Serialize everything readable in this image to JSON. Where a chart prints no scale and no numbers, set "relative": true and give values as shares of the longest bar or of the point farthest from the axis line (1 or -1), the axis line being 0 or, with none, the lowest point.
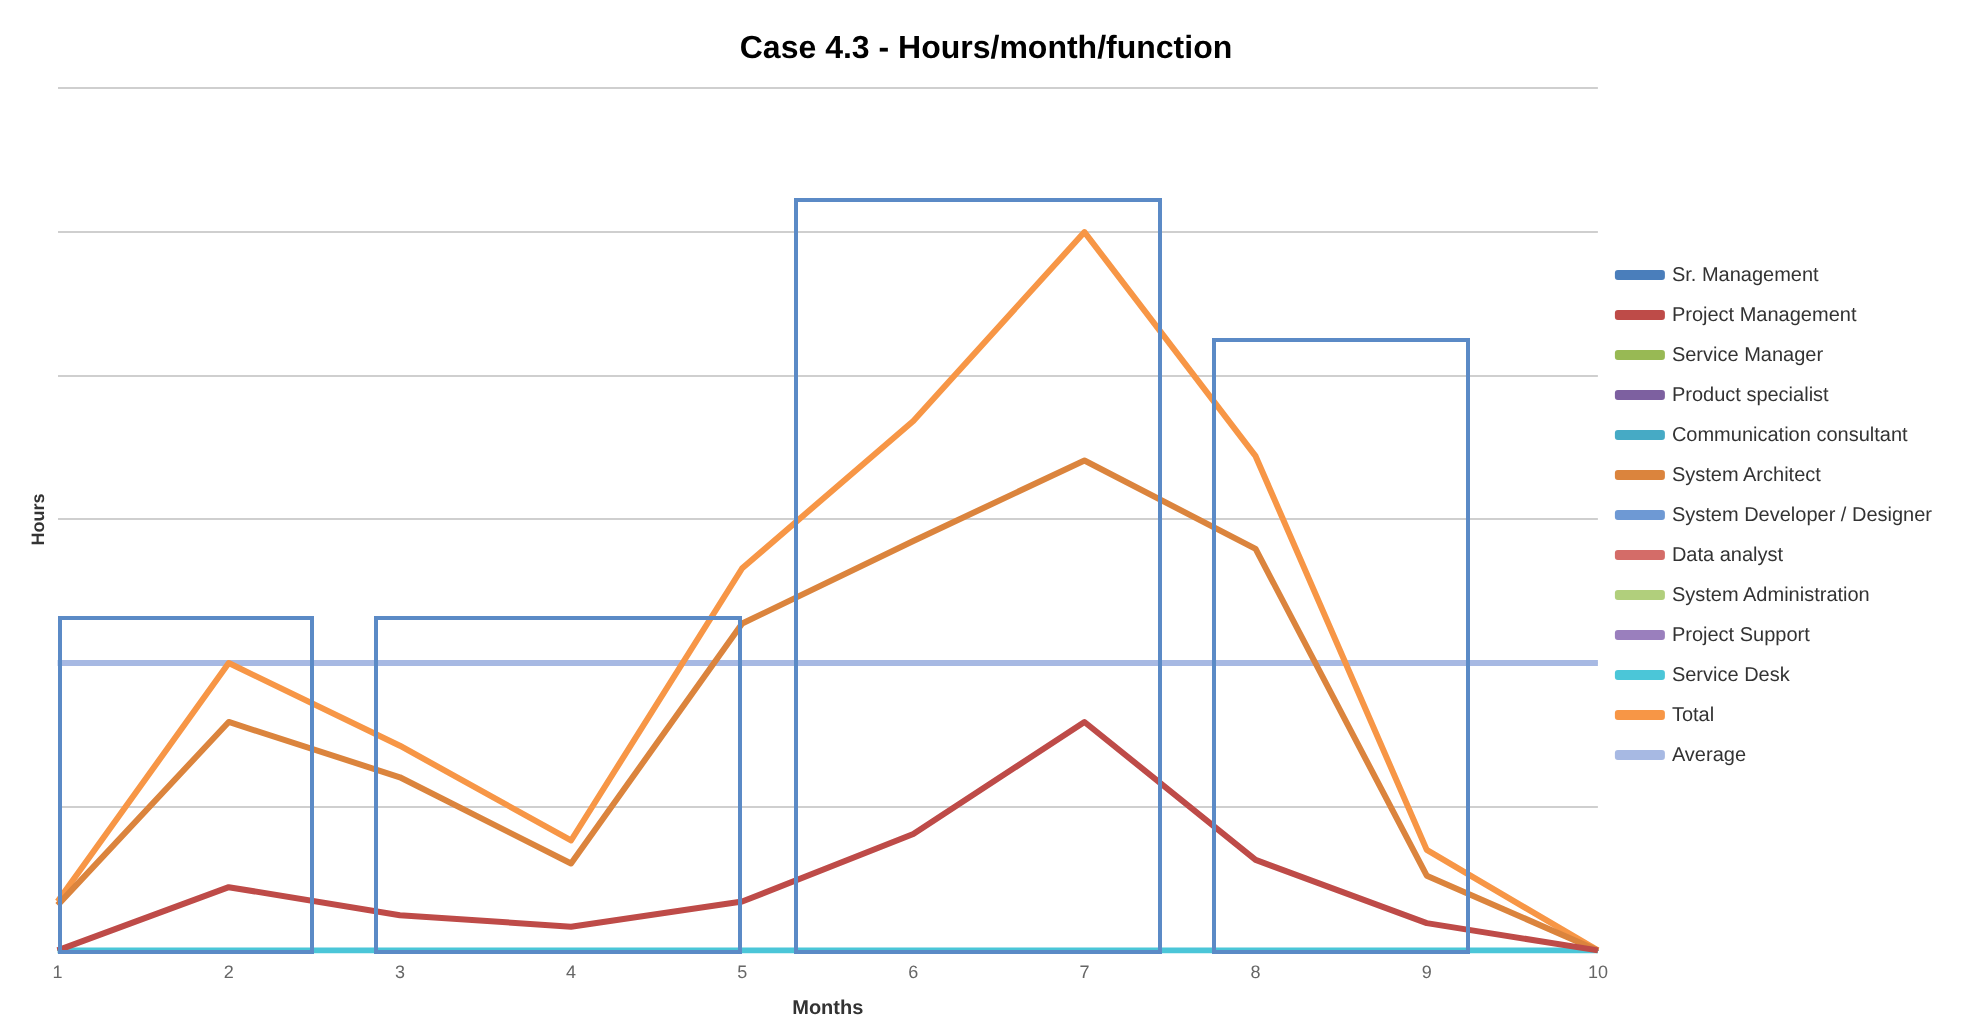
{
  "chart_data": {
    "type": "line",
    "title": "Case 4.3 - Hours/month/function",
    "xlabel": "Months",
    "ylabel": "Hours",
    "categories": [
      "1",
      "2",
      "3",
      "4",
      "5",
      "6",
      "7",
      "8",
      "9",
      "10"
    ],
    "relative": true,
    "grid": "y",
    "legend": "right",
    "marker": "none",
    "line_style": "solid",
    "series": [
      {
        "name": "Sr. Management",
        "color": "#4a7ebb",
        "values": [
          null,
          null,
          null,
          null,
          null,
          null,
          null,
          null,
          null,
          null
        ]
      },
      {
        "name": "Project Management",
        "color": "#be4b48",
        "values": [
          0,
          0.088,
          0.049,
          0.033,
          0.068,
          0.162,
          0.318,
          0.126,
          0.038,
          0
        ]
      },
      {
        "name": "Service Manager",
        "color": "#98b954",
        "values": [
          null,
          null,
          null,
          null,
          null,
          null,
          null,
          null,
          null,
          null
        ]
      },
      {
        "name": "Product specialist",
        "color": "#7d60a0",
        "values": [
          null,
          null,
          null,
          null,
          null,
          null,
          null,
          null,
          null,
          null
        ]
      },
      {
        "name": "Communication consultant",
        "color": "#46aac5",
        "values": [
          null,
          null,
          null,
          null,
          null,
          null,
          null,
          null,
          null,
          null
        ]
      },
      {
        "name": "System Architect",
        "color": "#db843d",
        "values": [
          0.063,
          0.318,
          0.241,
          0.121,
          0.455,
          0.57,
          0.682,
          0.559,
          0.104,
          0
        ]
      },
      {
        "name": "System Developer / Designer",
        "color": "#6e99d4",
        "values": [
          null,
          null,
          null,
          null,
          null,
          null,
          null,
          null,
          null,
          null
        ]
      },
      {
        "name": "Data analyst",
        "color": "#d46c68",
        "values": [
          null,
          null,
          null,
          null,
          null,
          null,
          null,
          null,
          null,
          null
        ]
      },
      {
        "name": "System Administration",
        "color": "#b1cf7c",
        "values": [
          null,
          null,
          null,
          null,
          null,
          null,
          null,
          null,
          null,
          null
        ]
      },
      {
        "name": "Project Support",
        "color": "#9a7fbd",
        "values": [
          null,
          null,
          null,
          null,
          null,
          null,
          null,
          null,
          null,
          null
        ]
      },
      {
        "name": "Service Desk",
        "color": "#4bc6d8",
        "values": [
          0,
          0,
          0,
          0,
          0,
          0,
          0,
          0,
          0,
          0
        ]
      },
      {
        "name": "Total",
        "color": "#f79646",
        "values": [
          0.068,
          0.4,
          0.285,
          0.153,
          0.532,
          0.737,
          1,
          0.688,
          0.14,
          0
        ]
      },
      {
        "name": "Average",
        "color": "#a7b9e3",
        "values": [
          0.4,
          0.4,
          0.4,
          0.4,
          0.4,
          0.4,
          0.4,
          0.4,
          0.4,
          0.4
        ]
      }
    ]
  }
}
